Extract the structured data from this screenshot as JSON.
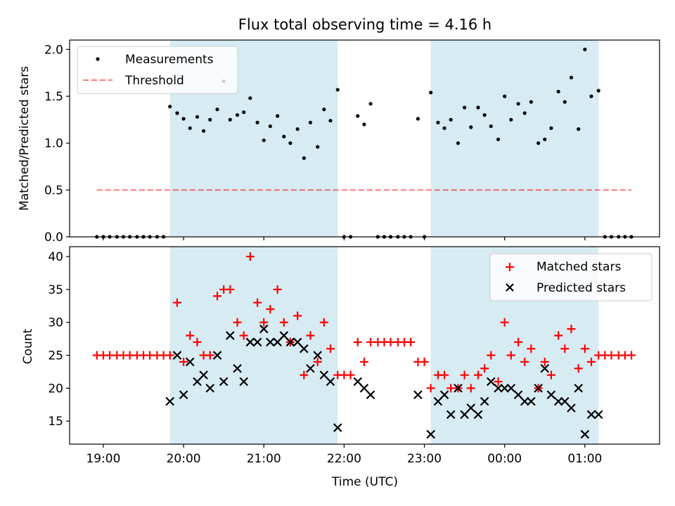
{
  "title": "Flux total observing time = 4.16 h",
  "colors": {
    "shade": "#add8e6",
    "measurement": "#000000",
    "threshold": "#ff0000",
    "matched": "#ff0000",
    "predicted": "#000000"
  },
  "chart_data": [
    {
      "type": "scatter",
      "ylabel": "Matched/Predicted stars",
      "ylim": [
        0,
        2.1
      ],
      "xlim": [
        18.58,
        25.93
      ],
      "yticks": [
        "0.0",
        "0.5",
        "1.0",
        "1.5",
        "2.0"
      ],
      "grid": false,
      "legend_position": "top-left",
      "shaded_intervals": [
        [
          19.83,
          21.92
        ],
        [
          23.08,
          25.17
        ]
      ],
      "series": [
        {
          "name": "Measurements",
          "marker": "dot",
          "points": [
            [
              18.92,
              0
            ],
            [
              19.0,
              0
            ],
            [
              19.08,
              0
            ],
            [
              19.17,
              0
            ],
            [
              19.25,
              0
            ],
            [
              19.33,
              0
            ],
            [
              19.42,
              0
            ],
            [
              19.5,
              0
            ],
            [
              19.58,
              0
            ],
            [
              19.67,
              0
            ],
            [
              19.75,
              0
            ],
            [
              19.83,
              1.39
            ],
            [
              19.92,
              1.32
            ],
            [
              20.0,
              1.26
            ],
            [
              20.08,
              1.16
            ],
            [
              20.17,
              1.28
            ],
            [
              20.25,
              1.13
            ],
            [
              20.33,
              1.25
            ],
            [
              20.42,
              1.36
            ],
            [
              20.5,
              1.66
            ],
            [
              20.58,
              1.25
            ],
            [
              20.67,
              1.3
            ],
            [
              20.75,
              1.33
            ],
            [
              20.83,
              1.48
            ],
            [
              20.92,
              1.22
            ],
            [
              21.0,
              1.03
            ],
            [
              21.08,
              1.18
            ],
            [
              21.17,
              1.29
            ],
            [
              21.25,
              1.07
            ],
            [
              21.33,
              1.0
            ],
            [
              21.42,
              1.15
            ],
            [
              21.5,
              0.84
            ],
            [
              21.58,
              1.22
            ],
            [
              21.67,
              0.96
            ],
            [
              21.75,
              1.36
            ],
            [
              21.83,
              1.24
            ],
            [
              21.92,
              1.57
            ],
            [
              22.0,
              0
            ],
            [
              22.08,
              0
            ],
            [
              22.17,
              1.29
            ],
            [
              22.25,
              1.2
            ],
            [
              22.33,
              1.42
            ],
            [
              22.42,
              0
            ],
            [
              22.5,
              0
            ],
            [
              22.58,
              0
            ],
            [
              22.67,
              0
            ],
            [
              22.75,
              0
            ],
            [
              22.83,
              0
            ],
            [
              22.92,
              1.26
            ],
            [
              23.0,
              0
            ],
            [
              23.08,
              1.54
            ],
            [
              23.17,
              1.22
            ],
            [
              23.25,
              1.16
            ],
            [
              23.33,
              1.25
            ],
            [
              23.42,
              1.0
            ],
            [
              23.5,
              1.38
            ],
            [
              23.58,
              1.17
            ],
            [
              23.67,
              1.38
            ],
            [
              23.75,
              1.3
            ],
            [
              23.83,
              1.18
            ],
            [
              23.92,
              1.04
            ],
            [
              24.0,
              1.5
            ],
            [
              24.08,
              1.25
            ],
            [
              24.17,
              1.42
            ],
            [
              24.25,
              1.32
            ],
            [
              24.33,
              1.44
            ],
            [
              24.42,
              1.0
            ],
            [
              24.5,
              1.04
            ],
            [
              24.58,
              1.16
            ],
            [
              24.67,
              1.55
            ],
            [
              24.75,
              1.44
            ],
            [
              24.83,
              1.7
            ],
            [
              24.92,
              1.15
            ],
            [
              25.0,
              2.0
            ],
            [
              25.08,
              1.5
            ],
            [
              25.17,
              1.56
            ],
            [
              25.25,
              0
            ],
            [
              25.33,
              0
            ],
            [
              25.42,
              0
            ],
            [
              25.5,
              0
            ],
            [
              25.58,
              0
            ]
          ]
        },
        {
          "name": "Threshold",
          "style": "dashed",
          "points": [
            [
              18.92,
              0.5
            ],
            [
              25.58,
              0.5
            ]
          ]
        }
      ]
    },
    {
      "type": "scatter",
      "xlabel": "Time (UTC)",
      "ylabel": "Count",
      "ylim": [
        11.5,
        41.5
      ],
      "xlim": [
        18.58,
        25.93
      ],
      "yticks": [
        "15",
        "20",
        "25",
        "30",
        "35",
        "40"
      ],
      "xticks": [
        {
          "value": 19,
          "label": "19:00"
        },
        {
          "value": 20,
          "label": "20:00"
        },
        {
          "value": 21,
          "label": "21:00"
        },
        {
          "value": 22,
          "label": "22:00"
        },
        {
          "value": 23,
          "label": "23:00"
        },
        {
          "value": 24,
          "label": "00:00"
        },
        {
          "value": 25,
          "label": "01:00"
        }
      ],
      "grid": false,
      "legend_position": "top-right",
      "shaded_intervals": [
        [
          19.83,
          21.92
        ],
        [
          23.08,
          25.17
        ]
      ],
      "series": [
        {
          "name": "Matched stars",
          "marker": "plus",
          "points": [
            [
              18.92,
              25
            ],
            [
              19.0,
              25
            ],
            [
              19.08,
              25
            ],
            [
              19.17,
              25
            ],
            [
              19.25,
              25
            ],
            [
              19.33,
              25
            ],
            [
              19.42,
              25
            ],
            [
              19.5,
              25
            ],
            [
              19.58,
              25
            ],
            [
              19.67,
              25
            ],
            [
              19.75,
              25
            ],
            [
              19.83,
              25
            ],
            [
              19.92,
              33
            ],
            [
              20.0,
              24
            ],
            [
              20.08,
              28
            ],
            [
              20.17,
              27
            ],
            [
              20.25,
              25
            ],
            [
              20.33,
              25
            ],
            [
              20.42,
              34
            ],
            [
              20.5,
              35
            ],
            [
              20.58,
              35
            ],
            [
              20.67,
              30
            ],
            [
              20.75,
              28
            ],
            [
              20.83,
              40
            ],
            [
              20.92,
              33
            ],
            [
              21.0,
              30
            ],
            [
              21.08,
              32
            ],
            [
              21.17,
              35
            ],
            [
              21.25,
              30
            ],
            [
              21.33,
              27
            ],
            [
              21.42,
              31
            ],
            [
              21.5,
              22
            ],
            [
              21.58,
              28
            ],
            [
              21.67,
              24
            ],
            [
              21.75,
              30
            ],
            [
              21.83,
              26
            ],
            [
              21.92,
              22
            ],
            [
              22.0,
              22
            ],
            [
              22.08,
              22
            ],
            [
              22.17,
              27
            ],
            [
              22.25,
              24
            ],
            [
              22.33,
              27
            ],
            [
              22.42,
              27
            ],
            [
              22.5,
              27
            ],
            [
              22.58,
              27
            ],
            [
              22.67,
              27
            ],
            [
              22.75,
              27
            ],
            [
              22.83,
              27
            ],
            [
              22.92,
              24
            ],
            [
              23.0,
              24
            ],
            [
              23.08,
              20
            ],
            [
              23.17,
              22
            ],
            [
              23.25,
              22
            ],
            [
              23.33,
              20
            ],
            [
              23.42,
              20
            ],
            [
              23.5,
              22
            ],
            [
              23.58,
              20
            ],
            [
              23.67,
              22
            ],
            [
              23.75,
              23
            ],
            [
              23.83,
              25
            ],
            [
              23.92,
              21
            ],
            [
              24.0,
              30
            ],
            [
              24.08,
              25
            ],
            [
              24.17,
              27
            ],
            [
              24.25,
              24
            ],
            [
              24.33,
              26
            ],
            [
              24.42,
              20
            ],
            [
              24.5,
              24
            ],
            [
              24.58,
              22
            ],
            [
              24.67,
              28
            ],
            [
              24.75,
              26
            ],
            [
              24.83,
              29
            ],
            [
              24.92,
              23
            ],
            [
              25.0,
              26
            ],
            [
              25.08,
              24
            ],
            [
              25.17,
              25
            ],
            [
              25.25,
              25
            ],
            [
              25.33,
              25
            ],
            [
              25.42,
              25
            ],
            [
              25.5,
              25
            ],
            [
              25.58,
              25
            ]
          ]
        },
        {
          "name": "Predicted stars",
          "marker": "x",
          "points": [
            [
              19.83,
              18
            ],
            [
              19.92,
              25
            ],
            [
              20.0,
              19
            ],
            [
              20.08,
              24
            ],
            [
              20.17,
              21
            ],
            [
              20.25,
              22
            ],
            [
              20.33,
              20
            ],
            [
              20.42,
              25
            ],
            [
              20.5,
              21
            ],
            [
              20.58,
              28
            ],
            [
              20.67,
              23
            ],
            [
              20.75,
              21
            ],
            [
              20.83,
              27
            ],
            [
              20.92,
              27
            ],
            [
              21.0,
              29
            ],
            [
              21.08,
              27
            ],
            [
              21.17,
              27
            ],
            [
              21.25,
              28
            ],
            [
              21.33,
              27
            ],
            [
              21.42,
              27
            ],
            [
              21.5,
              26
            ],
            [
              21.58,
              23
            ],
            [
              21.67,
              25
            ],
            [
              21.75,
              22
            ],
            [
              21.83,
              21
            ],
            [
              21.92,
              14
            ],
            [
              22.17,
              21
            ],
            [
              22.25,
              20
            ],
            [
              22.33,
              19
            ],
            [
              22.92,
              19
            ],
            [
              23.08,
              13
            ],
            [
              23.17,
              18
            ],
            [
              23.25,
              19
            ],
            [
              23.33,
              16
            ],
            [
              23.42,
              20
            ],
            [
              23.5,
              16
            ],
            [
              23.58,
              17
            ],
            [
              23.67,
              16
            ],
            [
              23.75,
              18
            ],
            [
              23.83,
              21
            ],
            [
              23.92,
              20
            ],
            [
              24.0,
              20
            ],
            [
              24.08,
              20
            ],
            [
              24.17,
              19
            ],
            [
              24.25,
              18
            ],
            [
              24.33,
              18
            ],
            [
              24.42,
              20
            ],
            [
              24.5,
              23
            ],
            [
              24.58,
              19
            ],
            [
              24.67,
              18
            ],
            [
              24.75,
              18
            ],
            [
              24.83,
              17
            ],
            [
              24.92,
              20
            ],
            [
              25.0,
              13
            ],
            [
              25.08,
              16
            ],
            [
              25.17,
              16
            ]
          ]
        }
      ]
    }
  ]
}
